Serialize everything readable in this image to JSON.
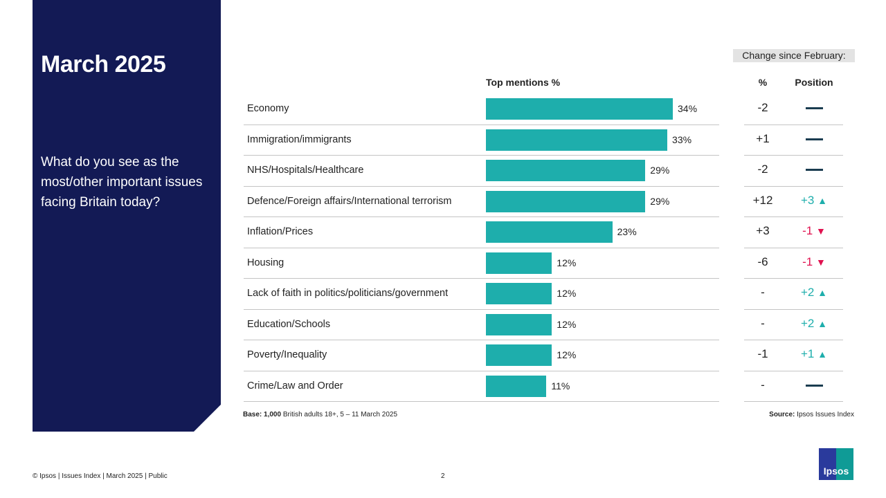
{
  "title": "March 2025",
  "question": "What do you see as the most/other important issues facing Britain today?",
  "change_header": "Change since February:",
  "col_pct": "%",
  "col_position": "Position",
  "colors": {
    "bar": "#1eaeac",
    "panel": "#131a55",
    "up": "#1eaeac",
    "down": "#e0114f",
    "same": "#1a3c50"
  },
  "chart_data": {
    "type": "bar",
    "orientation": "horizontal",
    "xlabel": "Top mentions %",
    "categories": [
      "Economy",
      "Immigration/immigrants",
      "NHS/Hospitals/Healthcare",
      "Defence/Foreign affairs/International terrorism",
      "Inflation/Prices",
      "Housing",
      "Lack of faith in politics/politicians/government",
      "Education/Schools",
      "Poverty/Inequality",
      "Crime/Law and Order"
    ],
    "values": [
      34,
      33,
      29,
      29,
      23,
      12,
      12,
      12,
      12,
      11
    ],
    "labels": [
      "34%",
      "33%",
      "29%",
      "29%",
      "23%",
      "12%",
      "12%",
      "12%",
      "12%",
      "11%"
    ],
    "change_pct": [
      "-2",
      "+1",
      "-2",
      "+12",
      "+3",
      "-6",
      "-",
      "-",
      "-1",
      "-"
    ],
    "change_position": [
      {
        "dir": "same",
        "text": ""
      },
      {
        "dir": "same",
        "text": ""
      },
      {
        "dir": "same",
        "text": ""
      },
      {
        "dir": "up",
        "text": "+3"
      },
      {
        "dir": "down",
        "text": "-1"
      },
      {
        "dir": "down",
        "text": "-1"
      },
      {
        "dir": "up",
        "text": "+2"
      },
      {
        "dir": "up",
        "text": "+2"
      },
      {
        "dir": "up",
        "text": "+1"
      },
      {
        "dir": "same",
        "text": ""
      }
    ]
  },
  "base_label": "Base:",
  "base_bold": "1,000",
  "base_text": "British adults 18+, 5 – 11 March 2025",
  "source_label": "Source:",
  "source_text": "Ipsos Issues Index",
  "footer": "© Ipsos | Issues Index | March 2025 | Public",
  "page_number": "2",
  "logo_text": "Ipsos"
}
